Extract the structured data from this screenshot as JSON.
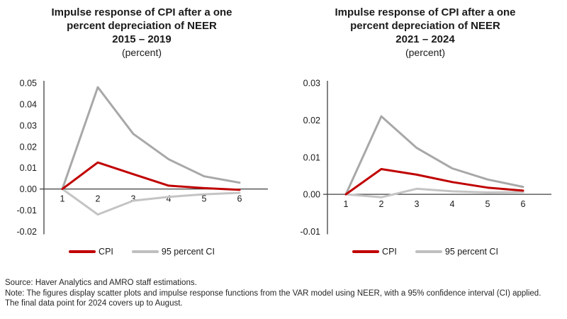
{
  "colors": {
    "cpi_red": "#C00000",
    "ci_gray_upper": "#A8A8A8",
    "ci_gray_lower": "#C4C4C4",
    "legend_ci_gray": "#BFBFBF",
    "axis": "#404040",
    "text": "#1A1A1A"
  },
  "chart_data": [
    {
      "type": "line",
      "title": "Impulse response of CPI after a one percent depreciation of NEER",
      "period": "2015 – 2019",
      "unit": "(percent)",
      "xlabel": "",
      "ylabel": "",
      "x": [
        "1",
        "2",
        "3",
        "4",
        "5",
        "6"
      ],
      "ylim": [
        -0.02,
        0.05
      ],
      "yticks": [
        "0.05",
        "0.04",
        "0.03",
        "0.02",
        "0.01",
        "0.00",
        "-0.01",
        "-0.02"
      ],
      "grid": false,
      "legend_position": "bottom",
      "series": [
        {
          "name": "95 percent CI upper",
          "color": "#A8A8A8",
          "values": [
            0,
            0.048,
            0.026,
            0.014,
            0.006,
            0.003
          ]
        },
        {
          "name": "95 percent CI lower",
          "color": "#C4C4C4",
          "values": [
            0,
            -0.012,
            -0.0055,
            -0.0037,
            -0.0025,
            -0.0018
          ]
        },
        {
          "name": "CPI",
          "color": "#C00000",
          "values": [
            0,
            0.0125,
            0.007,
            0.0016,
            0.0004,
            -0.0004
          ]
        }
      ],
      "legend": [
        {
          "label": "CPI",
          "color": "#C00000"
        },
        {
          "label": "95 percent CI",
          "color": "#BFBFBF"
        }
      ]
    },
    {
      "type": "line",
      "title": "Impulse response of CPI after a one percent depreciation of NEER",
      "period": "2021 – 2024",
      "unit": "(percent)",
      "xlabel": "",
      "ylabel": "",
      "x": [
        "1",
        "2",
        "3",
        "4",
        "5",
        "6"
      ],
      "ylim": [
        -0.01,
        0.03
      ],
      "yticks": [
        "0.03",
        "0.02",
        "0.01",
        "0.00",
        "-0.01"
      ],
      "grid": false,
      "legend_position": "bottom",
      "series": [
        {
          "name": "95 percent CI upper",
          "color": "#A8A8A8",
          "values": [
            0,
            0.021,
            0.0125,
            0.007,
            0.004,
            0.002
          ]
        },
        {
          "name": "95 percent CI lower",
          "color": "#C4C4C4",
          "values": [
            0,
            -0.0008,
            0.0015,
            0.0008,
            0.0005,
            0.0006
          ]
        },
        {
          "name": "CPI",
          "color": "#C00000",
          "values": [
            0,
            0.0068,
            0.0053,
            0.0033,
            0.0018,
            0.001
          ]
        }
      ],
      "legend": [
        {
          "label": "CPI",
          "color": "#C00000"
        },
        {
          "label": "95 percent CI",
          "color": "#BFBFBF"
        }
      ]
    }
  ],
  "footer": {
    "source": "Source: Haver Analytics and AMRO staff estimations.",
    "note": "Note: The figures display scatter plots and impulse response functions from the VAR model using NEER, with a 95% confidence interval (CI) applied. The final data point for 2024 covers up to August."
  }
}
